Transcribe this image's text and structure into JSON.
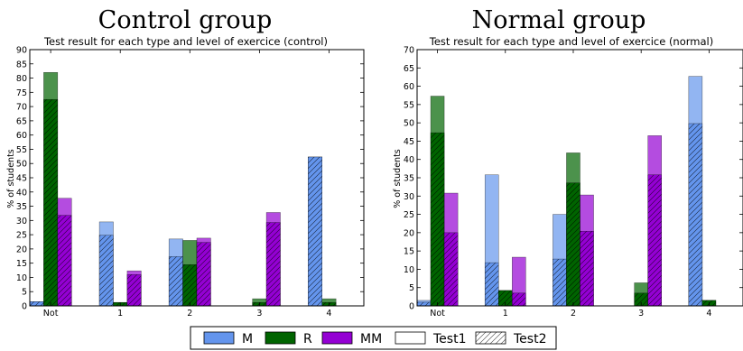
{
  "figure_titles": [
    "Control group",
    "Normal group"
  ],
  "colors": {
    "M": "#6495ED",
    "R": "#006400",
    "MM": "#9400D3"
  },
  "legend": {
    "entries": [
      {
        "key": "M",
        "label": "M"
      },
      {
        "key": "R",
        "label": "R"
      },
      {
        "key": "MM",
        "label": "MM"
      },
      {
        "key": "test1",
        "label": "Test1"
      },
      {
        "key": "test2",
        "label": "Test2"
      }
    ]
  },
  "chart_data": [
    {
      "type": "bar",
      "title": "Test result for each type and level of exercice (control)",
      "xlabel": "",
      "ylabel": "% of students",
      "ylim": [
        0,
        90
      ],
      "yticks": [
        0,
        5,
        10,
        15,
        20,
        25,
        30,
        35,
        40,
        45,
        50,
        55,
        60,
        65,
        70,
        75,
        80,
        85,
        90
      ],
      "categories": [
        "Not",
        "1",
        "2",
        "3",
        "4"
      ],
      "series": [
        {
          "name": "M",
          "test1": [
            1.5,
            29.5,
            23.5,
            0,
            52.3
          ],
          "test2": [
            1.5,
            24.8,
            17.3,
            0,
            52.3
          ]
        },
        {
          "name": "R",
          "test1": [
            82,
            1.2,
            23,
            2.5,
            2.5
          ],
          "test2": [
            72.5,
            1.2,
            14.5,
            1.2,
            1.2
          ]
        },
        {
          "name": "MM",
          "test1": [
            37.8,
            12.3,
            23.8,
            32.8,
            0
          ],
          "test2": [
            31.8,
            11.0,
            22.3,
            29.3,
            0
          ]
        }
      ],
      "grid": false
    },
    {
      "type": "bar",
      "title": "Test result for each type and level of exercice (normal)",
      "xlabel": "",
      "ylabel": "% of students",
      "ylim": [
        0,
        70
      ],
      "yticks": [
        0,
        5,
        10,
        15,
        20,
        25,
        30,
        35,
        40,
        45,
        50,
        55,
        60,
        65,
        70
      ],
      "categories": [
        "Not",
        "1",
        "2",
        "3",
        "4"
      ],
      "series": [
        {
          "name": "M",
          "test1": [
            1.5,
            35.8,
            25.0,
            0,
            62.7
          ],
          "test2": [
            1.0,
            11.8,
            12.8,
            0,
            49.8
          ]
        },
        {
          "name": "R",
          "test1": [
            57.3,
            4.2,
            41.8,
            6.3,
            1.5
          ],
          "test2": [
            47.3,
            4.2,
            33.6,
            3.5,
            1.5
          ]
        },
        {
          "name": "MM",
          "test1": [
            30.8,
            13.3,
            30.3,
            46.5,
            0
          ],
          "test2": [
            20.0,
            3.5,
            20.4,
            35.8,
            0
          ]
        }
      ],
      "grid": false
    }
  ]
}
